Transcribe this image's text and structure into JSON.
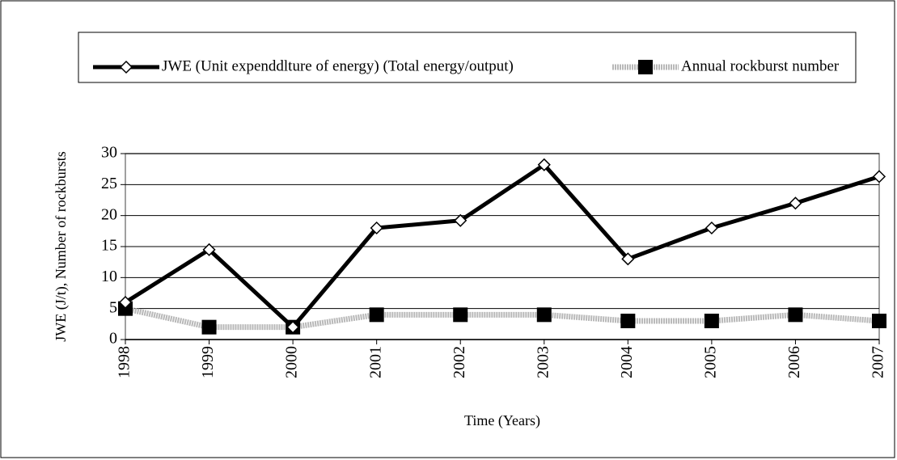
{
  "chart_data": {
    "type": "line",
    "x_label": "Time (Years)",
    "y_label": "JWE (J/t), Number of rockbursts",
    "categories": [
      "1998",
      "1999",
      "2000",
      "2001",
      "2002",
      "2003",
      "2004",
      "2005",
      "2006",
      "2007"
    ],
    "series": [
      {
        "name": "JWE (Unit expenddlture of energy) (Total energy/output)",
        "color": "#000000",
        "marker": "diamond",
        "values": [
          6,
          14.5,
          2,
          18,
          19.2,
          28.2,
          13,
          18,
          22,
          26.3
        ]
      },
      {
        "name": "Annual rockburst number",
        "color": "#b8b8b8",
        "marker": "square",
        "values": [
          5,
          2,
          2,
          4,
          4,
          4,
          3,
          3,
          4,
          3
        ]
      }
    ],
    "ylim": [
      0,
      30
    ],
    "yticks": [
      0,
      5,
      10,
      15,
      20,
      25,
      30
    ],
    "grid": true,
    "legend": "top"
  }
}
